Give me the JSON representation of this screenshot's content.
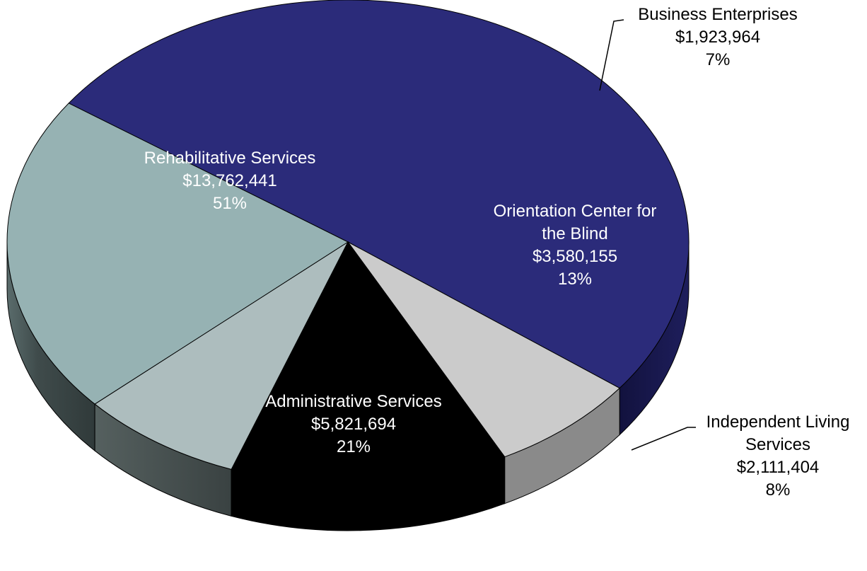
{
  "chart_data": {
    "type": "pie",
    "style": "3d-exploded-tilted",
    "title": "",
    "slices": [
      {
        "name": "Rehabilitative Services",
        "label_lines": [
          "Rehabilitative Services"
        ],
        "amount": "$13,762,441",
        "value": 13762441,
        "percent": "51%",
        "color": "#2b2b7a",
        "side_color": "#1a1a55",
        "label_color": "#ffffff"
      },
      {
        "name": "Business Enterprises",
        "label_lines": [
          "Business Enterprises"
        ],
        "amount": "$1,923,964",
        "value": 1923964,
        "percent": "7%",
        "color": "#cbcbcb",
        "side_color": "#8a8a8a",
        "label_color": "#000000"
      },
      {
        "name": "Orientation Center for the Blind",
        "label_lines": [
          "Orientation Center for",
          "the Blind"
        ],
        "amount": "$3,580,155",
        "value": 3580155,
        "percent": "13%",
        "color": "#000000",
        "side_color": "#000000",
        "label_color": "#ffffff"
      },
      {
        "name": "Independent Living Services",
        "label_lines": [
          "Independent Living",
          "Services"
        ],
        "amount": "$2,111,404",
        "value": 2111404,
        "percent": "8%",
        "color": "#adbdbe",
        "side_color": "#4a5352",
        "label_color": "#000000"
      },
      {
        "name": "Administrative Services",
        "label_lines": [
          "Administrative Services"
        ],
        "amount": "$5,821,694",
        "value": 5821694,
        "percent": "21%",
        "color": "#96b2b3",
        "side_color": "#3f4b4b",
        "label_color": "#ffffff"
      }
    ]
  }
}
